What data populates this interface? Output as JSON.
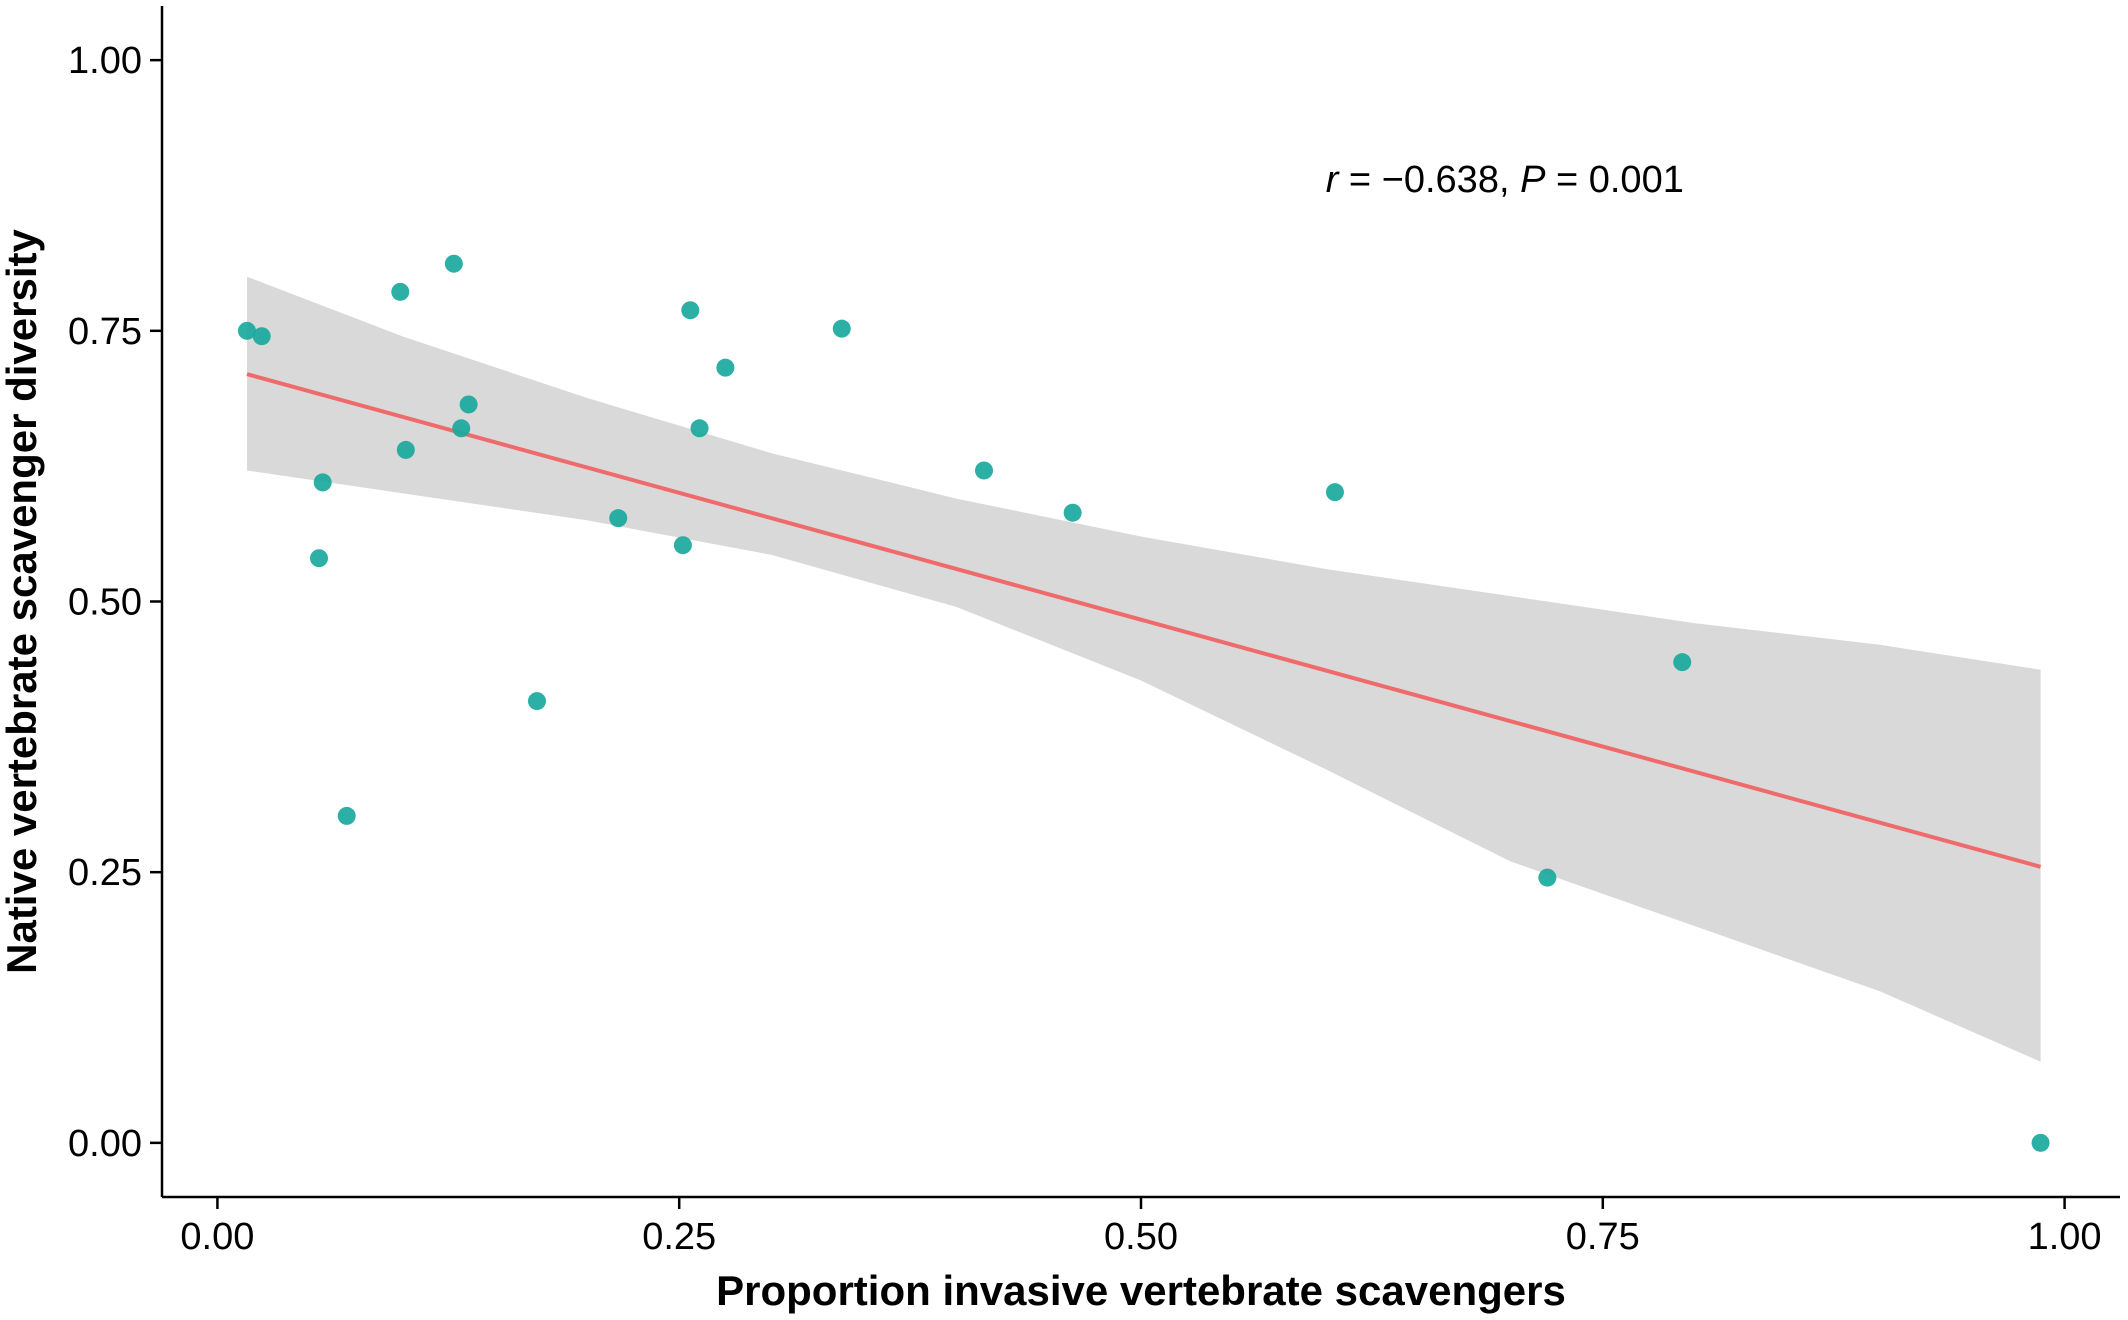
{
  "chart_data": {
    "type": "scatter",
    "xlabel": "Proportion invasive vertebrate scavengers",
    "ylabel": "Native vertebrate scavenger diversity",
    "xlim": [
      -0.03,
      1.03
    ],
    "ylim": [
      -0.05,
      1.05
    ],
    "x_ticks": [
      0.0,
      0.25,
      0.5,
      0.75,
      1.0
    ],
    "x_tick_labels": [
      "0.00",
      "0.25",
      "0.50",
      "0.75",
      "1.00"
    ],
    "y_ticks": [
      0.0,
      0.25,
      0.5,
      0.75,
      1.0
    ],
    "y_tick_labels": [
      "0.00",
      "0.25",
      "0.50",
      "0.75",
      "1.00"
    ],
    "grid": false,
    "annotation": {
      "r_symbol": "r",
      "r_text": " = −0.638, ",
      "p_symbol": "P",
      "p_text": " = 0.001",
      "x": 0.6,
      "y": 0.89
    },
    "points": [
      {
        "x": 0.016,
        "y": 0.75
      },
      {
        "x": 0.024,
        "y": 0.745
      },
      {
        "x": 0.055,
        "y": 0.54
      },
      {
        "x": 0.057,
        "y": 0.61
      },
      {
        "x": 0.07,
        "y": 0.302
      },
      {
        "x": 0.099,
        "y": 0.786
      },
      {
        "x": 0.102,
        "y": 0.64
      },
      {
        "x": 0.128,
        "y": 0.812
      },
      {
        "x": 0.132,
        "y": 0.66
      },
      {
        "x": 0.136,
        "y": 0.682
      },
      {
        "x": 0.173,
        "y": 0.408
      },
      {
        "x": 0.217,
        "y": 0.577
      },
      {
        "x": 0.252,
        "y": 0.552
      },
      {
        "x": 0.256,
        "y": 0.769
      },
      {
        "x": 0.261,
        "y": 0.66
      },
      {
        "x": 0.275,
        "y": 0.716
      },
      {
        "x": 0.338,
        "y": 0.752
      },
      {
        "x": 0.415,
        "y": 0.621
      },
      {
        "x": 0.463,
        "y": 0.582
      },
      {
        "x": 0.605,
        "y": 0.601
      },
      {
        "x": 0.72,
        "y": 0.245
      },
      {
        "x": 0.793,
        "y": 0.444
      },
      {
        "x": 0.987,
        "y": 0.0
      }
    ],
    "trend_line": {
      "x": [
        0.016,
        0.987
      ],
      "y": [
        0.71,
        0.255
      ],
      "color": "#ef6a6a"
    },
    "confidence_band": {
      "x": [
        0.016,
        0.1,
        0.2,
        0.3,
        0.4,
        0.5,
        0.6,
        0.7,
        0.8,
        0.9,
        0.987
      ],
      "upper": [
        0.8,
        0.745,
        0.688,
        0.637,
        0.595,
        0.56,
        0.53,
        0.505,
        0.48,
        0.46,
        0.437
      ],
      "lower": [
        0.621,
        0.6,
        0.575,
        0.543,
        0.495,
        0.427,
        0.345,
        0.26,
        0.2,
        0.14,
        0.075
      ],
      "color": "#d9d9d9"
    },
    "point_color": "#1aa99e"
  }
}
